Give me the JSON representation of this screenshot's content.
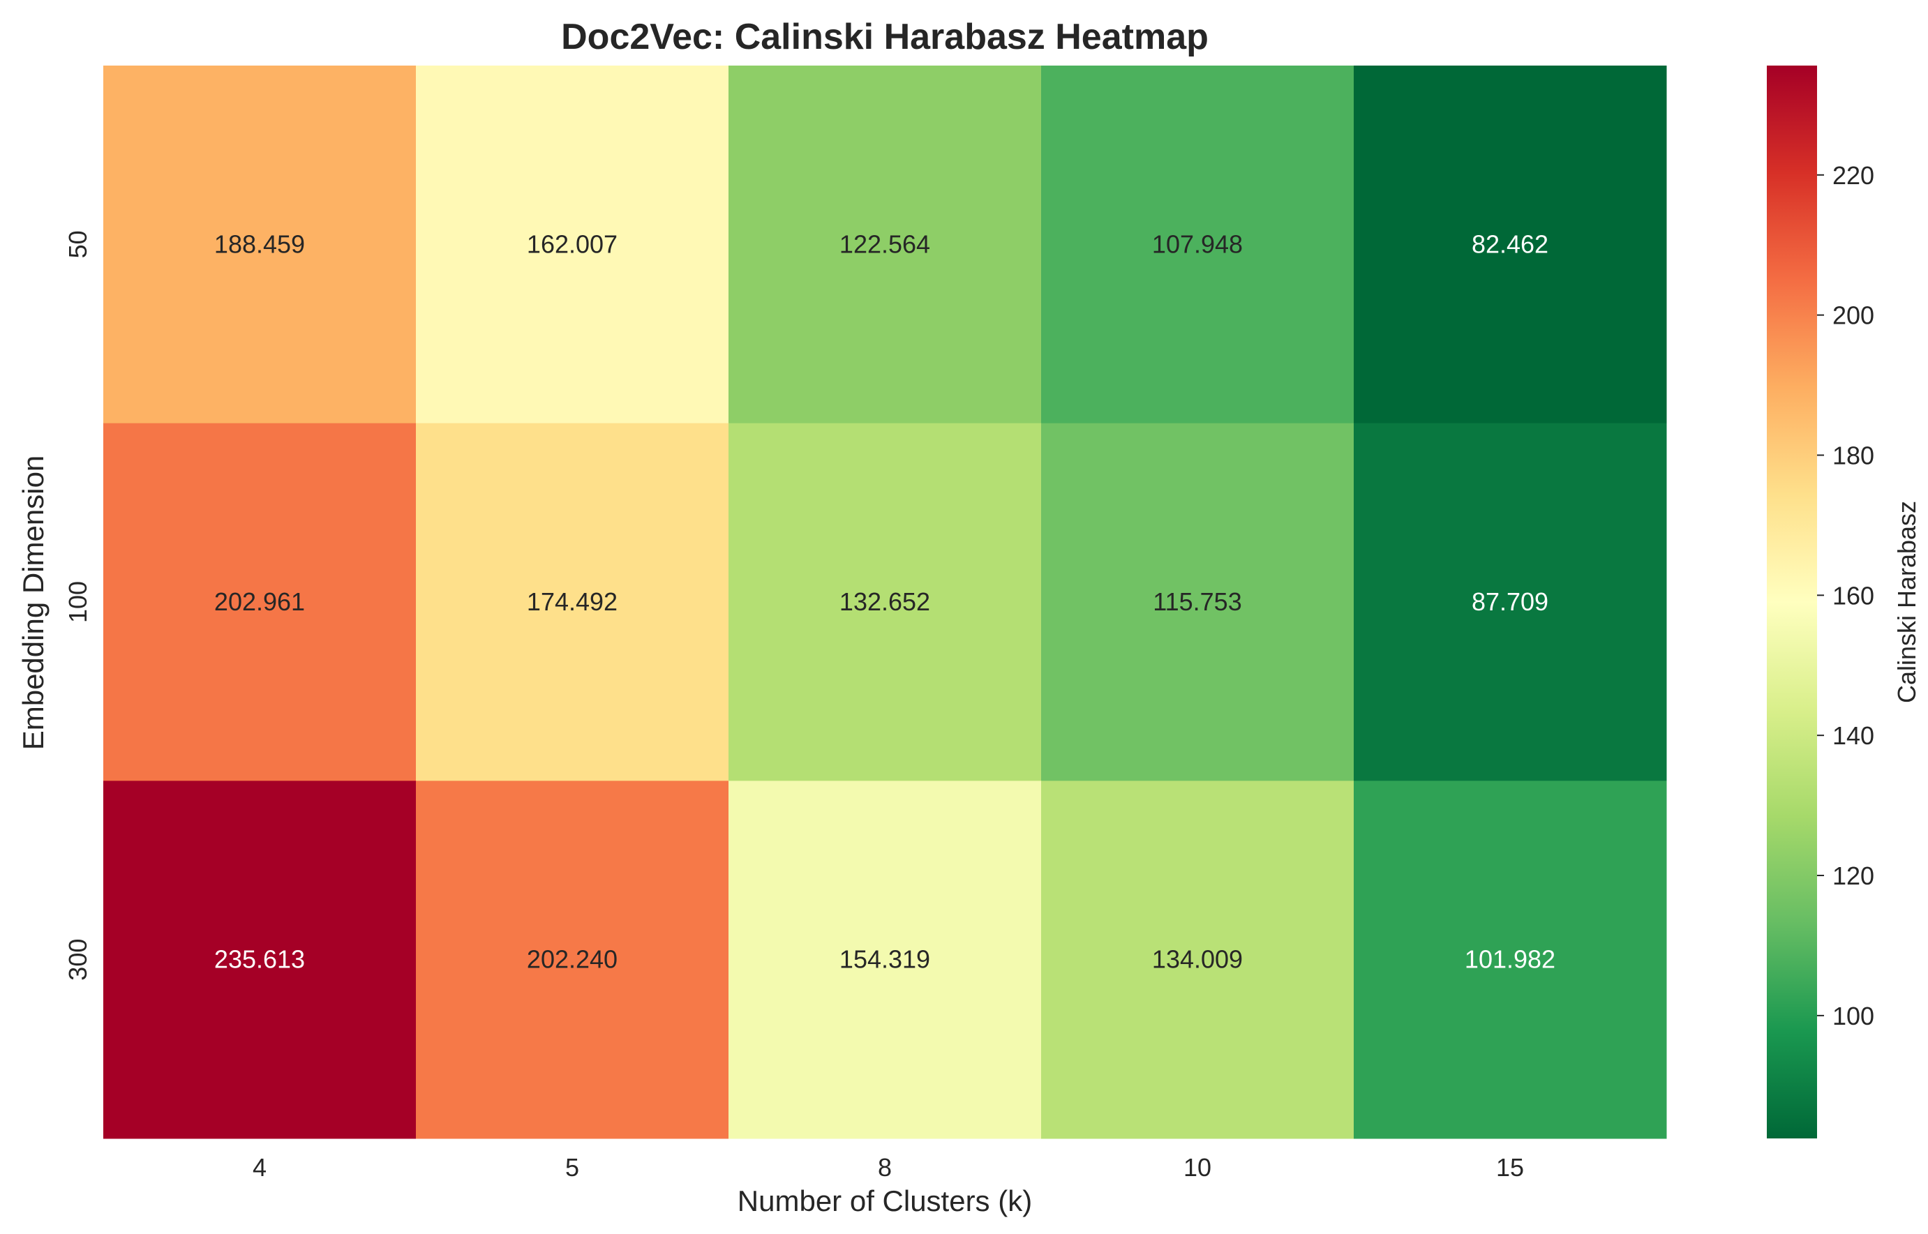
{
  "chart_data": {
    "type": "heatmap",
    "title": "Doc2Vec: Calinski Harabasz Heatmap",
    "xlabel": "Number of Clusters (k)",
    "ylabel": "Embedding Dimension",
    "x_categories": [
      "4",
      "5",
      "8",
      "10",
      "15"
    ],
    "y_categories": [
      "50",
      "100",
      "300"
    ],
    "values": [
      [
        188.459,
        162.007,
        122.564,
        107.948,
        82.462
      ],
      [
        202.961,
        174.492,
        132.652,
        115.753,
        87.709
      ],
      [
        235.613,
        202.24,
        154.319,
        134.009,
        101.982
      ]
    ],
    "value_labels": [
      [
        "188.459",
        "162.007",
        "122.564",
        "107.948",
        "82.462"
      ],
      [
        "202.961",
        "174.492",
        "132.652",
        "115.753",
        "87.709"
      ],
      [
        "235.613",
        "202.240",
        "154.319",
        "134.009",
        "101.982"
      ]
    ],
    "colormap": "RdYlGn_r",
    "vmin": 82.462,
    "vmax": 235.613,
    "colorbar": {
      "label": "Calinski Harabasz",
      "ticks": [
        100,
        120,
        140,
        160,
        180,
        200,
        220
      ]
    }
  }
}
